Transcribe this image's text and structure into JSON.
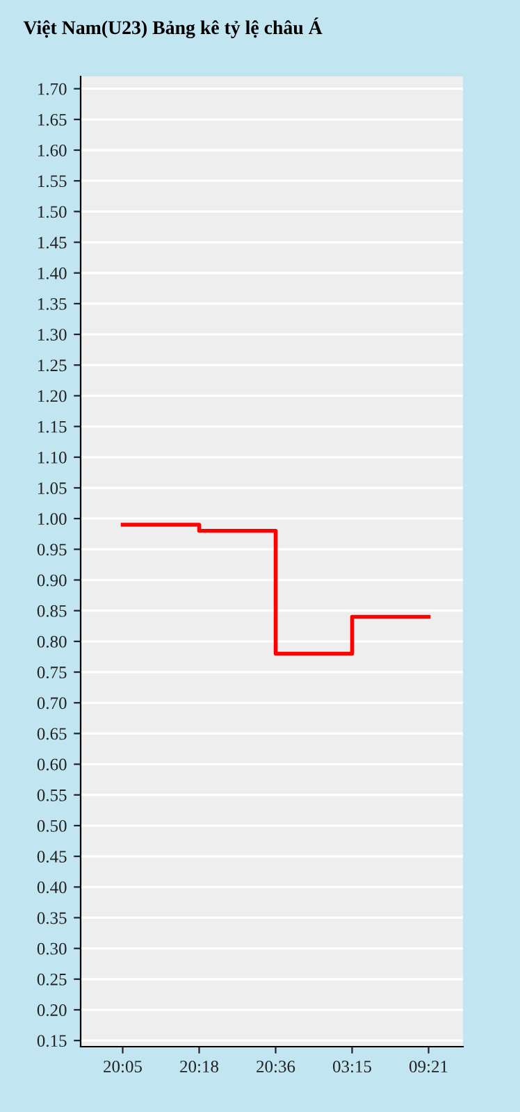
{
  "chart_data": {
    "type": "step",
    "title": "Việt Nam(U23) Bảng kê tỷ lệ châu Á",
    "categories": [
      "20:05",
      "20:18",
      "20:36",
      "03:15",
      "09:21"
    ],
    "series": [
      {
        "color": "#ff0000",
        "values": [
          0.99,
          0.98,
          0.78,
          0.84,
          0.84
        ]
      }
    ],
    "ylim": [
      0.14,
      1.72
    ],
    "yticks": [
      {
        "value": 0.15,
        "label": "0.15"
      },
      {
        "value": 0.2,
        "label": "0.20"
      },
      {
        "value": 0.25,
        "label": "0.25"
      },
      {
        "value": 0.3,
        "label": "0.30"
      },
      {
        "value": 0.35,
        "label": "0.35"
      },
      {
        "value": 0.4,
        "label": "0.40"
      },
      {
        "value": 0.45,
        "label": "0.45"
      },
      {
        "value": 0.5,
        "label": "0.50"
      },
      {
        "value": 0.55,
        "label": "0.55"
      },
      {
        "value": 0.6,
        "label": "0.60"
      },
      {
        "value": 0.65,
        "label": "0.65"
      },
      {
        "value": 0.7,
        "label": "0.70"
      },
      {
        "value": 0.75,
        "label": "0.75"
      },
      {
        "value": 0.8,
        "label": "0.80"
      },
      {
        "value": 0.85,
        "label": "0.85"
      },
      {
        "value": 0.9,
        "label": "0.90"
      },
      {
        "value": 0.95,
        "label": "0.95"
      },
      {
        "value": 1.0,
        "label": "1.00"
      },
      {
        "value": 1.05,
        "label": "1.05"
      },
      {
        "value": 1.1,
        "label": "1.10"
      },
      {
        "value": 1.15,
        "label": "1.15"
      },
      {
        "value": 1.2,
        "label": "1.20"
      },
      {
        "value": 1.25,
        "label": "1.25"
      },
      {
        "value": 1.3,
        "label": "1.30"
      },
      {
        "value": 1.35,
        "label": "1.35"
      },
      {
        "value": 1.4,
        "label": "1.40"
      },
      {
        "value": 1.45,
        "label": "1.45"
      },
      {
        "value": 1.5,
        "label": "1.50"
      },
      {
        "value": 1.55,
        "label": "1.55"
      },
      {
        "value": 1.6,
        "label": "1.60"
      },
      {
        "value": 1.65,
        "label": "1.65"
      },
      {
        "value": 1.7,
        "label": "1.70"
      }
    ],
    "grid": "y",
    "line_style": "solid"
  }
}
